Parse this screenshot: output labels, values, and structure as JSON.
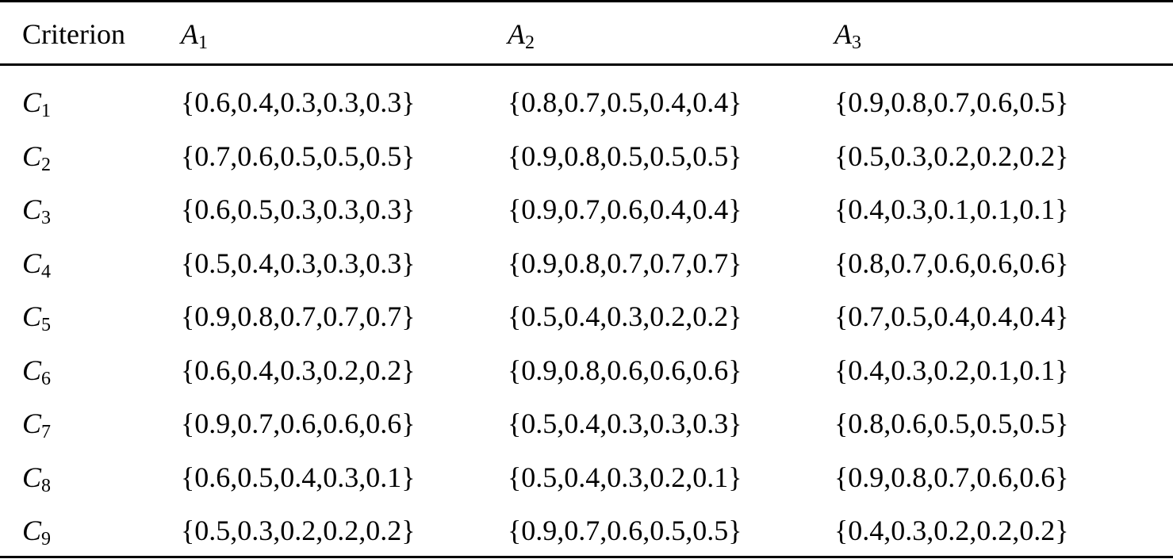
{
  "table": {
    "header": {
      "criterion": "Criterion",
      "columns": [
        {
          "base": "A",
          "sub": "1"
        },
        {
          "base": "A",
          "sub": "2"
        },
        {
          "base": "A",
          "sub": "3"
        }
      ]
    },
    "rows": [
      {
        "base": "C",
        "sub": "1",
        "values": [
          "{0.6,0.4,0.3,0.3,0.3}",
          "{0.8,0.7,0.5,0.4,0.4}",
          "{0.9,0.8,0.7,0.6,0.5}"
        ]
      },
      {
        "base": "C",
        "sub": "2",
        "values": [
          "{0.7,0.6,0.5,0.5,0.5}",
          "{0.9,0.8,0.5,0.5,0.5}",
          "{0.5,0.3,0.2,0.2,0.2}"
        ]
      },
      {
        "base": "C",
        "sub": "3",
        "values": [
          "{0.6,0.5,0.3,0.3,0.3}",
          "{0.9,0.7,0.6,0.4,0.4}",
          "{0.4,0.3,0.1,0.1,0.1}"
        ]
      },
      {
        "base": "C",
        "sub": "4",
        "values": [
          "{0.5,0.4,0.3,0.3,0.3}",
          "{0.9,0.8,0.7,0.7,0.7}",
          "{0.8,0.7,0.6,0.6,0.6}"
        ]
      },
      {
        "base": "C",
        "sub": "5",
        "values": [
          "{0.9,0.8,0.7,0.7,0.7}",
          "{0.5,0.4,0.3,0.2,0.2}",
          "{0.7,0.5,0.4,0.4,0.4}"
        ]
      },
      {
        "base": "C",
        "sub": "6",
        "values": [
          "{0.6,0.4,0.3,0.2,0.2}",
          "{0.9,0.8,0.6,0.6,0.6}",
          "{0.4,0.3,0.2,0.1,0.1}"
        ]
      },
      {
        "base": "C",
        "sub": "7",
        "values": [
          "{0.9,0.7,0.6,0.6,0.6}",
          "{0.5,0.4,0.3,0.3,0.3}",
          "{0.8,0.6,0.5,0.5,0.5}"
        ]
      },
      {
        "base": "C",
        "sub": "8",
        "values": [
          "{0.6,0.5,0.4,0.3,0.1}",
          "{0.5,0.4,0.3,0.2,0.1}",
          "{0.9,0.8,0.7,0.6,0.6}"
        ]
      },
      {
        "base": "C",
        "sub": "9",
        "values": [
          "{0.5,0.3,0.2,0.2,0.2}",
          "{0.9,0.7,0.6,0.5,0.5}",
          "{0.4,0.3,0.2,0.2,0.2}"
        ]
      }
    ]
  }
}
